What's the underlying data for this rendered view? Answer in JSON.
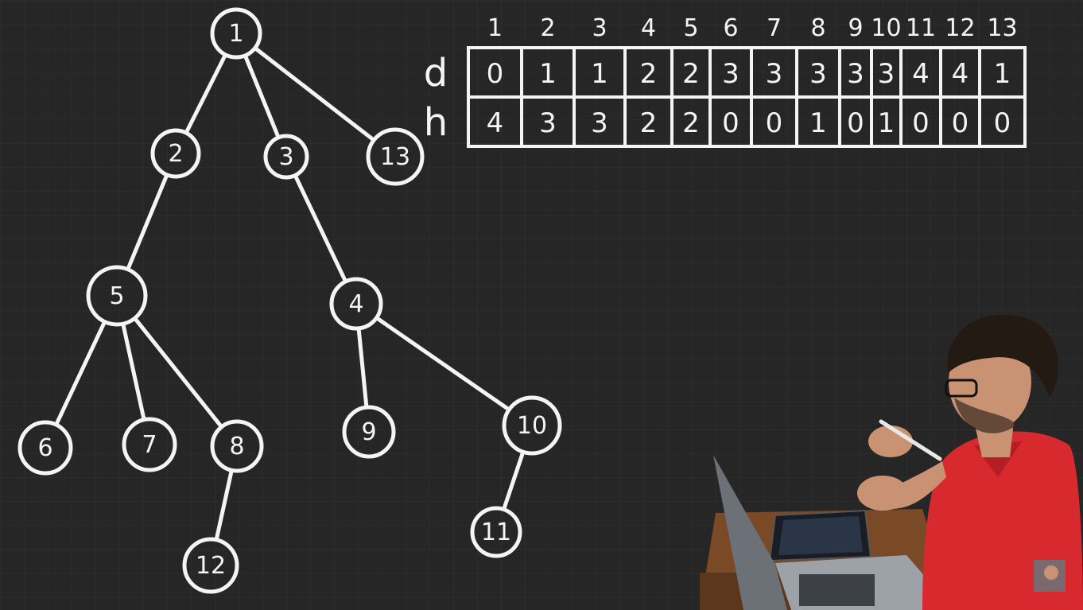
{
  "tree": {
    "nodes": [
      {
        "id": "1",
        "label": "1"
      },
      {
        "id": "2",
        "label": "2"
      },
      {
        "id": "3",
        "label": "3"
      },
      {
        "id": "13",
        "label": "13"
      },
      {
        "id": "5",
        "label": "5"
      },
      {
        "id": "4",
        "label": "4"
      },
      {
        "id": "6",
        "label": "6"
      },
      {
        "id": "7",
        "label": "7"
      },
      {
        "id": "8",
        "label": "8"
      },
      {
        "id": "9",
        "label": "9"
      },
      {
        "id": "10",
        "label": "10"
      },
      {
        "id": "12",
        "label": "12"
      },
      {
        "id": "11",
        "label": "11"
      }
    ],
    "edges": [
      [
        "1",
        "2"
      ],
      [
        "1",
        "3"
      ],
      [
        "1",
        "13"
      ],
      [
        "2",
        "5"
      ],
      [
        "3",
        "4"
      ],
      [
        "5",
        "6"
      ],
      [
        "5",
        "7"
      ],
      [
        "5",
        "8"
      ],
      [
        "4",
        "9"
      ],
      [
        "4",
        "10"
      ],
      [
        "8",
        "12"
      ],
      [
        "10",
        "11"
      ]
    ]
  },
  "table": {
    "columns": [
      "1",
      "2",
      "3",
      "4",
      "5",
      "6",
      "7",
      "8",
      "9",
      "10",
      "11",
      "12",
      "13"
    ],
    "rows": [
      {
        "label": "d",
        "values": [
          "0",
          "1",
          "1",
          "2",
          "2",
          "3",
          "3",
          "3",
          "3",
          "3",
          "4",
          "4",
          "1"
        ]
      },
      {
        "label": "h",
        "values": [
          "4",
          "3",
          "3",
          "2",
          "2",
          "0",
          "0",
          "1",
          "0",
          "1",
          "0",
          "0",
          "0"
        ]
      }
    ]
  },
  "colors": {
    "board": "#262626",
    "grid": "#333333",
    "ink": "#f4f4f4",
    "shirt": "#d8292f",
    "skin": "#c99373",
    "hair": "#241a14",
    "desk": "#7a4a26",
    "laptop": "#9da2a8"
  }
}
